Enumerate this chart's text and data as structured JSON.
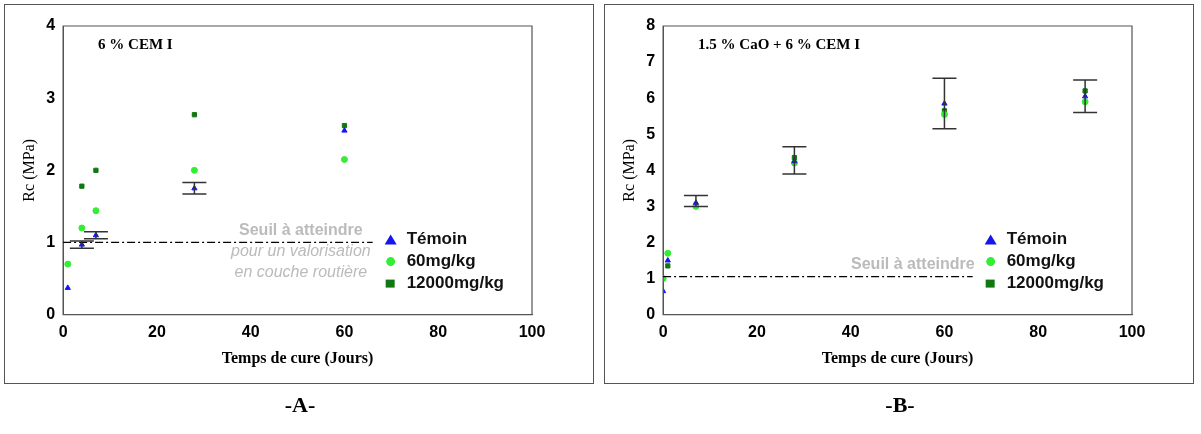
{
  "chart_data": [
    {
      "type": "scatter",
      "title": "6 % CEM I",
      "xlabel": "Temps de cure (Jours)",
      "ylabel": "Rc (MPa)",
      "xlim": [
        0,
        100
      ],
      "xticks": [
        0,
        20,
        40,
        60,
        80,
        100
      ],
      "ylim": [
        0,
        4
      ],
      "yticks": [
        0,
        1,
        2,
        3,
        4
      ],
      "grid": false,
      "legend": "bottom right",
      "annotations": [
        "-A-"
      ],
      "ref_lines": [
        {
          "axis": "y",
          "value": 1,
          "label": "Seuil à atteindre\npour un valorisation\nen couche routière",
          "color": "#000000",
          "line_style": "dashdot"
        }
      ],
      "series": [
        {
          "name": "Témoin",
          "color": "#1515f0",
          "marker": "triangle",
          "x": [
            1,
            4,
            7,
            28,
            60
          ],
          "values": [
            0.37,
            0.97,
            1.1,
            1.75,
            2.55
          ],
          "errors": [
            null,
            0.05,
            0.05,
            0.08,
            null
          ]
        },
        {
          "name": "60mg/kg",
          "color": "#33ee33",
          "marker": "circle",
          "x": [
            1,
            4,
            7,
            28,
            60
          ],
          "values": [
            0.7,
            1.2,
            1.44,
            2.0,
            2.15
          ]
        },
        {
          "name": "12000mg/kg",
          "color": "#117711",
          "marker": "square",
          "x": [
            4,
            7,
            28,
            60
          ],
          "values": [
            1.78,
            2.0,
            2.77,
            2.62
          ]
        }
      ]
    },
    {
      "type": "scatter",
      "title": "1.5 % CaO + 6 % CEM I",
      "xlabel": "Temps de cure (Jours)",
      "ylabel": "Rc (MPa)",
      "xlim": [
        0,
        100
      ],
      "xticks": [
        0,
        20,
        40,
        60,
        80,
        100
      ],
      "ylim": [
        0,
        8
      ],
      "yticks": [
        0,
        1,
        2,
        3,
        4,
        5,
        6,
        7,
        8
      ],
      "grid": false,
      "legend": "bottom right",
      "annotations": [
        "-B-"
      ],
      "ref_lines": [
        {
          "axis": "y",
          "value": 1.05,
          "label": "Seuil à atteindre",
          "color": "#000000",
          "line_style": "dashdot"
        }
      ],
      "series": [
        {
          "name": "Témoin",
          "color": "#1515f0",
          "marker": "triangle",
          "x": [
            0,
            1,
            7,
            28,
            60,
            90
          ],
          "values": [
            0.65,
            1.5,
            3.1,
            4.25,
            5.85,
            6.05
          ],
          "errors": [
            null,
            null,
            [
              3.0,
              3.3
            ],
            [
              3.9,
              4.65
            ],
            [
              5.15,
              6.55
            ],
            [
              5.6,
              6.5
            ]
          ]
        },
        {
          "name": "60mg/kg",
          "color": "#33ee33",
          "marker": "circle",
          "x": [
            0,
            1,
            7,
            28,
            60,
            90
          ],
          "values": [
            1.0,
            1.7,
            3.0,
            4.2,
            5.55,
            5.9
          ]
        },
        {
          "name": "12000mg/kg",
          "color": "#117711",
          "marker": "square",
          "x": [
            1,
            28,
            60,
            90
          ],
          "values": [
            1.35,
            4.35,
            5.65,
            6.2
          ]
        }
      ]
    }
  ]
}
